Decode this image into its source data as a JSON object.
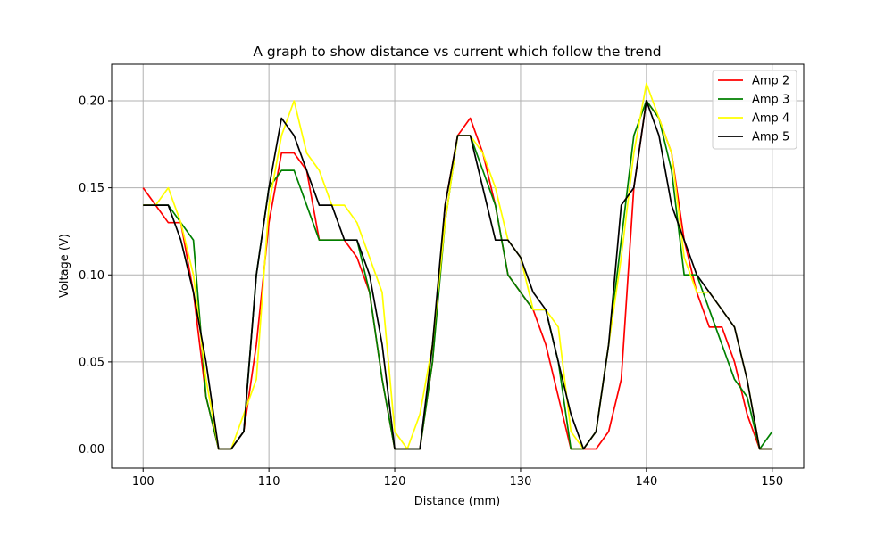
{
  "chart_data": {
    "type": "line",
    "title": "A graph to show distance vs current which follow the trend",
    "xlabel": "Distance (mm)",
    "ylabel": "Voltage (V)",
    "xlim": [
      97.5,
      152.5
    ],
    "ylim": [
      -0.011,
      0.221
    ],
    "xticks": [
      100,
      110,
      120,
      130,
      140,
      150
    ],
    "yticks": [
      0.0,
      0.05,
      0.1,
      0.15,
      0.2
    ],
    "ytick_labels": [
      "0.00",
      "0.05",
      "0.10",
      "0.15",
      "0.20"
    ],
    "grid": true,
    "legend_position": "top-right",
    "x": [
      100,
      101,
      102,
      103,
      104,
      105,
      106,
      107,
      108,
      109,
      110,
      111,
      112,
      113,
      114,
      115,
      116,
      117,
      118,
      119,
      120,
      121,
      122,
      123,
      124,
      125,
      126,
      127,
      128,
      129,
      130,
      131,
      132,
      133,
      134,
      135,
      136,
      137,
      138,
      139,
      140,
      141,
      142,
      143,
      144,
      145,
      146,
      147,
      148,
      149,
      150
    ],
    "series": [
      {
        "name": "Amp 2",
        "color": "#ff0000",
        "values": [
          0.15,
          0.14,
          0.13,
          0.13,
          0.09,
          0.03,
          0.0,
          0.0,
          0.01,
          0.06,
          0.13,
          0.17,
          0.17,
          0.16,
          0.12,
          0.12,
          0.12,
          0.11,
          0.09,
          0.04,
          0.0,
          0.0,
          0.0,
          0.05,
          0.14,
          0.18,
          0.19,
          0.17,
          0.14,
          0.1,
          0.09,
          0.08,
          0.06,
          0.03,
          0.0,
          0.0,
          0.0,
          0.01,
          0.04,
          0.15,
          0.2,
          0.19,
          0.17,
          0.12,
          0.09,
          0.07,
          0.07,
          0.05,
          0.02,
          0.0,
          0.0
        ]
      },
      {
        "name": "Amp 3",
        "color": "#008000",
        "values": [
          0.14,
          0.14,
          0.14,
          0.13,
          0.12,
          0.03,
          0.0,
          0.0,
          0.01,
          0.1,
          0.15,
          0.16,
          0.16,
          0.14,
          0.12,
          0.12,
          0.12,
          0.12,
          0.09,
          0.04,
          0.0,
          0.0,
          0.0,
          0.05,
          0.13,
          0.18,
          0.18,
          0.16,
          0.14,
          0.1,
          0.09,
          0.08,
          0.08,
          0.05,
          0.0,
          0.0,
          0.01,
          0.06,
          0.12,
          0.18,
          0.2,
          0.19,
          0.16,
          0.1,
          0.1,
          0.08,
          0.06,
          0.04,
          0.03,
          0.0,
          0.01
        ]
      },
      {
        "name": "Amp 4",
        "color": "#ffff00",
        "values": [
          0.14,
          0.14,
          0.15,
          0.13,
          0.1,
          0.04,
          0.0,
          0.0,
          0.02,
          0.04,
          0.14,
          0.18,
          0.2,
          0.17,
          0.16,
          0.14,
          0.14,
          0.13,
          0.11,
          0.09,
          0.01,
          0.0,
          0.02,
          0.06,
          0.13,
          0.18,
          0.18,
          0.17,
          0.15,
          0.12,
          0.11,
          0.08,
          0.08,
          0.07,
          0.01,
          0.0,
          0.01,
          0.06,
          0.11,
          0.17,
          0.21,
          0.19,
          0.17,
          0.11,
          0.09,
          0.09,
          0.08,
          0.07,
          0.04,
          0.0,
          0.0
        ]
      },
      {
        "name": "Amp 5",
        "color": "#000000",
        "values": [
          0.14,
          0.14,
          0.14,
          0.12,
          0.09,
          0.05,
          0.0,
          0.0,
          0.01,
          0.1,
          0.15,
          0.19,
          0.18,
          0.16,
          0.14,
          0.14,
          0.12,
          0.12,
          0.1,
          0.06,
          0.0,
          0.0,
          0.0,
          0.06,
          0.14,
          0.18,
          0.18,
          0.15,
          0.12,
          0.12,
          0.11,
          0.09,
          0.08,
          0.05,
          0.02,
          0.0,
          0.01,
          0.06,
          0.14,
          0.15,
          0.2,
          0.18,
          0.14,
          0.12,
          0.1,
          0.09,
          0.08,
          0.07,
          0.04,
          0.0,
          0.0
        ]
      }
    ]
  }
}
